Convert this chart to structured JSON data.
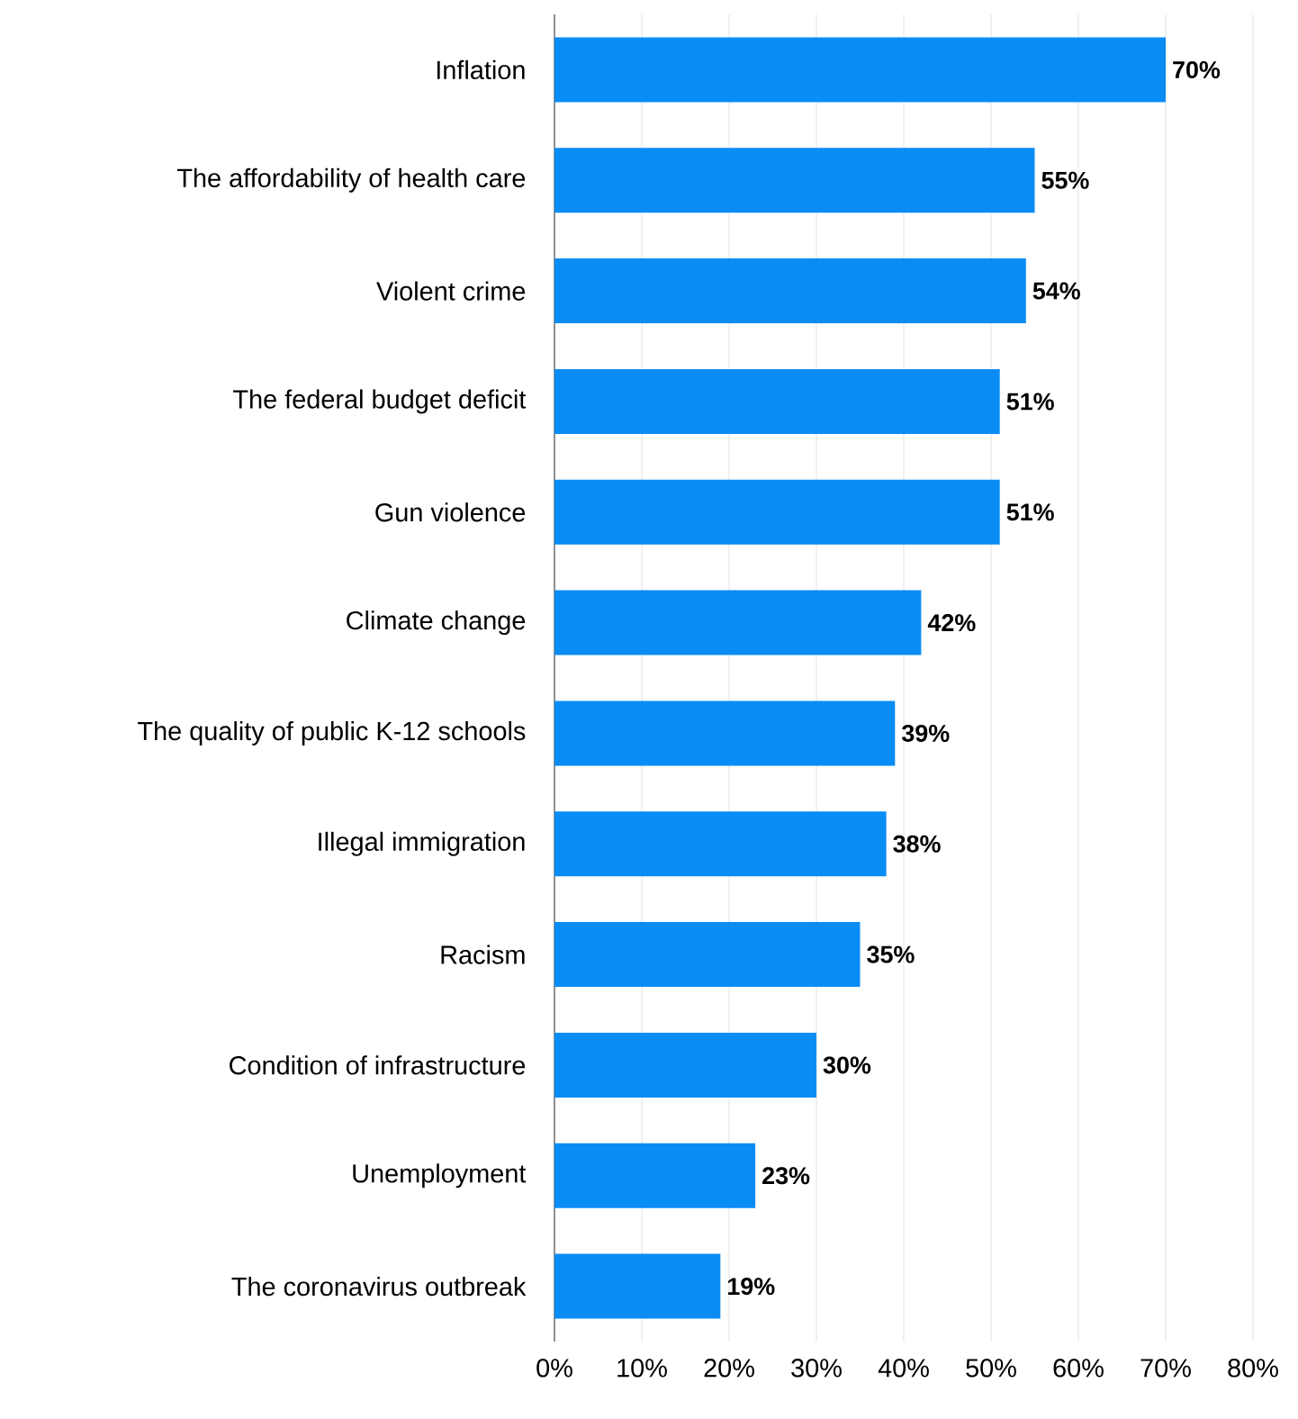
{
  "chart_data": {
    "type": "bar",
    "orientation": "horizontal",
    "categories": [
      "Inflation",
      "The affordability of health care",
      "Violent crime",
      "The federal budget deficit",
      "Gun violence",
      "Climate change",
      "The quality of public K-12 schools",
      "Illegal immigration",
      "Racism",
      "Condition of infrastructure",
      "Unemployment",
      "The coronavirus outbreak"
    ],
    "values": [
      70,
      55,
      54,
      51,
      51,
      42,
      39,
      38,
      35,
      30,
      23,
      19
    ],
    "value_labels": [
      "70%",
      "55%",
      "54%",
      "51%",
      "51%",
      "42%",
      "39%",
      "38%",
      "35%",
      "30%",
      "23%",
      "19%"
    ],
    "color": "#0a8cf5",
    "xlim": [
      0,
      80
    ],
    "xticks": [
      {
        "value": 0,
        "label": "0%"
      },
      {
        "value": 10,
        "label": "10%"
      },
      {
        "value": 20,
        "label": "20%"
      },
      {
        "value": 30,
        "label": "30%"
      },
      {
        "value": 40,
        "label": "40%"
      },
      {
        "value": 50,
        "label": "50%"
      },
      {
        "value": 60,
        "label": "60%"
      },
      {
        "value": 70,
        "label": "70%"
      },
      {
        "value": 80,
        "label": "80%"
      }
    ],
    "grid": "x"
  }
}
